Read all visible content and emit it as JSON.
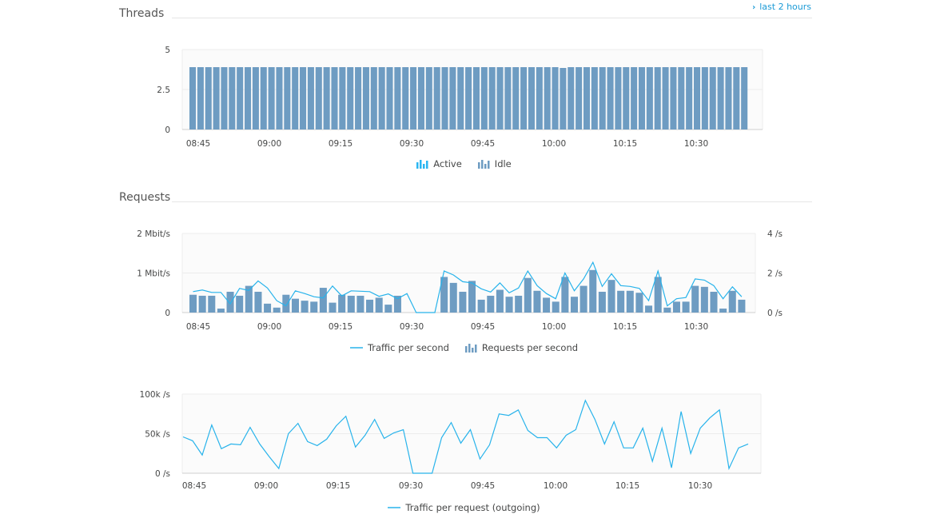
{
  "header": {
    "time_range_label": "last 2 hours",
    "time_range_icon": "chevron-right-icon"
  },
  "sections": {
    "threads_title": "Threads",
    "requests_title": "Requests"
  },
  "colors": {
    "active_blue": "#2ab6f2",
    "bar_steel": "#6e9cc2",
    "line_blue": "#28b3eb",
    "grid": "#ececec",
    "plot_bg": "#fbfbfb"
  },
  "chart_data": [
    {
      "type": "bar",
      "name": "threads",
      "x_ticks": [
        "08:45",
        "09:00",
        "09:15",
        "09:30",
        "09:45",
        "10:00",
        "10:15",
        "10:30"
      ],
      "y_ticks": [
        "5",
        "2.5",
        "0"
      ],
      "ylim": [
        0,
        5
      ],
      "legend": [
        "Active",
        "Idle"
      ],
      "series": [
        {
          "name": "Idle",
          "values": [
            3.9,
            3.9,
            3.9,
            3.9,
            3.9,
            3.9,
            3.9,
            3.9,
            3.9,
            3.9,
            3.9,
            3.9,
            3.9,
            3.9,
            3.9,
            3.9,
            3.9,
            3.9,
            3.9,
            3.9,
            3.9,
            3.9,
            3.9,
            3.9,
            3.9,
            3.9,
            3.9,
            3.9,
            3.9,
            3.9,
            3.9,
            3.9,
            3.9,
            3.9,
            3.9,
            3.9,
            3.9,
            3.9,
            3.9,
            3.9,
            3.9,
            3.9,
            3.9,
            3.9,
            3.9,
            3.9,
            3.9,
            3.85,
            3.9,
            3.9,
            3.9,
            3.9,
            3.9,
            3.9,
            3.9,
            3.9,
            3.9,
            3.9,
            3.9,
            3.9,
            3.9,
            3.9,
            3.9,
            3.9,
            3.9,
            3.9,
            3.9,
            3.9,
            3.9,
            3.9,
            3.9
          ]
        }
      ]
    },
    {
      "type": "bar+line",
      "name": "requests",
      "x_ticks": [
        "08:45",
        "09:00",
        "09:15",
        "09:30",
        "09:45",
        "10:00",
        "10:15",
        "10:30"
      ],
      "y_ticks_left": [
        "2 Mbit/s",
        "1 Mbit/s",
        "0"
      ],
      "y_ticks_right": [
        "4 /s",
        "2 /s",
        "0 /s"
      ],
      "ylim_left": [
        0,
        2
      ],
      "ylim_right": [
        0,
        4
      ],
      "legend": [
        "Traffic per second",
        "Requests per second"
      ],
      "series": [
        {
          "name": "Requests per second",
          "axis": "right",
          "values": [
            0.9,
            0.85,
            0.85,
            0.2,
            1.05,
            0.85,
            1.35,
            1.05,
            0.45,
            0.25,
            0.9,
            0.7,
            0.6,
            0.55,
            1.25,
            0.5,
            0.9,
            0.85,
            0.85,
            0.65,
            0.75,
            0.4,
            0.85,
            0,
            0,
            0,
            0,
            1.8,
            1.5,
            1.05,
            1.6,
            0.65,
            0.85,
            1.15,
            0.8,
            0.85,
            1.75,
            1.1,
            0.75,
            0.55,
            1.8,
            0.8,
            1.35,
            2.15,
            1.05,
            1.65,
            1.1,
            1.1,
            1.0,
            0.35,
            1.8,
            0.25,
            0.55,
            0.55,
            1.35,
            1.3,
            1.05,
            0.2,
            1.1,
            0.65
          ]
        },
        {
          "name": "Traffic per second",
          "axis": "left",
          "values": [
            0.53,
            0.57,
            0.51,
            0.51,
            0.22,
            0.61,
            0.56,
            0.8,
            0.62,
            0.3,
            0.17,
            0.55,
            0.48,
            0.4,
            0.37,
            0.67,
            0.42,
            0.55,
            0.54,
            0.53,
            0.41,
            0.47,
            0.35,
            0.48,
            0,
            0,
            0,
            1.05,
            0.95,
            0.78,
            0.75,
            0.6,
            0.52,
            0.75,
            0.5,
            0.62,
            1.05,
            0.68,
            0.48,
            0.35,
            1.0,
            0.55,
            0.85,
            1.27,
            0.66,
            0.98,
            0.68,
            0.66,
            0.61,
            0.3,
            1.05,
            0.17,
            0.35,
            0.38,
            0.85,
            0.82,
            0.68,
            0.35,
            0.65,
            0.4
          ]
        }
      ]
    },
    {
      "type": "line",
      "name": "traffic_per_request",
      "x_ticks": [
        "08:45",
        "09:00",
        "09:15",
        "09:30",
        "09:45",
        "10:00",
        "10:15",
        "10:30"
      ],
      "y_ticks": [
        "100k /s",
        "50k /s",
        "0 /s"
      ],
      "ylim": [
        0,
        100000
      ],
      "legend": [
        "Traffic per request (outgoing)"
      ],
      "series": [
        {
          "name": "Traffic per request (outgoing)",
          "values": [
            46000,
            41000,
            23000,
            61000,
            31000,
            37000,
            36000,
            58000,
            37000,
            21000,
            6000,
            50000,
            63000,
            40000,
            35000,
            43000,
            60000,
            72000,
            33000,
            48000,
            68000,
            44000,
            51000,
            55000,
            0,
            0,
            0,
            45000,
            64000,
            38000,
            55000,
            18000,
            36000,
            75000,
            73000,
            80000,
            54000,
            45000,
            45000,
            32000,
            48000,
            55000,
            92000,
            68000,
            37000,
            65000,
            32000,
            32000,
            57000,
            15000,
            57000,
            7000,
            78000,
            25000,
            57000,
            70000,
            80000,
            6000,
            32000,
            37000
          ]
        }
      ]
    }
  ]
}
